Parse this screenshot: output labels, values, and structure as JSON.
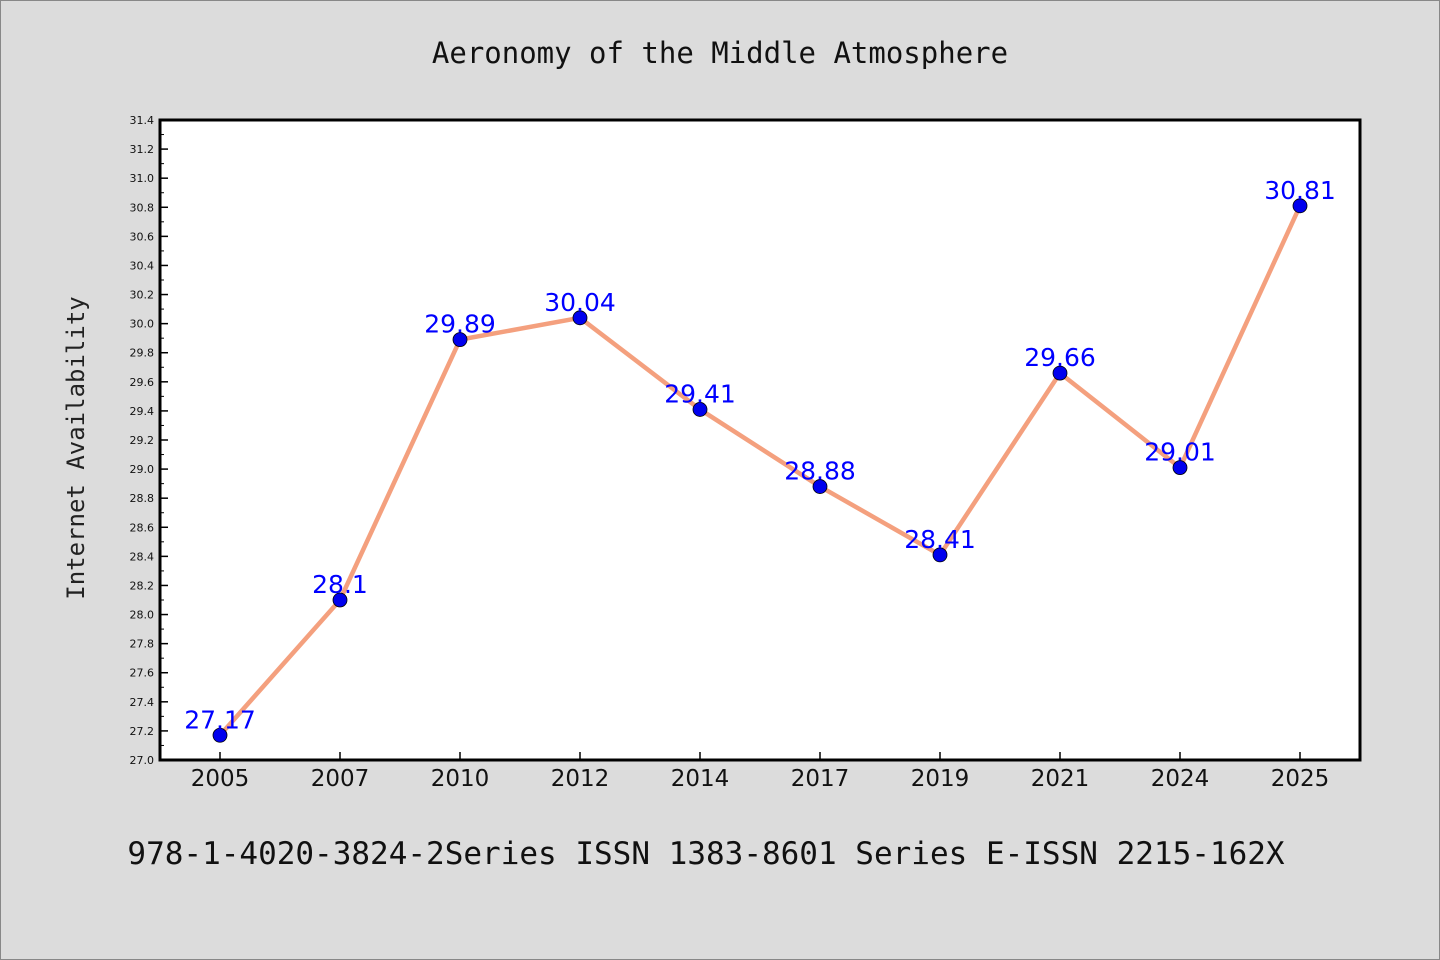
{
  "chart_data": {
    "type": "line",
    "title": "Aeronomy of the Middle Atmosphere",
    "xlabel": "",
    "ylabel": "Internet Availability",
    "categories": [
      "2005",
      "2007",
      "2010",
      "2012",
      "2014",
      "2017",
      "2019",
      "2021",
      "2024",
      "2025"
    ],
    "series": [
      {
        "values": [
          27.17,
          28.1,
          29.89,
          30.04,
          29.41,
          28.88,
          28.41,
          29.66,
          29.01,
          30.81
        ],
        "labels": [
          "27.17",
          "28.1",
          "29.89",
          "30.04",
          "29.41",
          "28.88",
          "28.41",
          "29.66",
          "29.01",
          "30.81"
        ]
      }
    ],
    "ylim": [
      27.0,
      31.4
    ],
    "yticks": [
      "27.0",
      "27.2",
      "27.4",
      "27.6",
      "27.8",
      "28.0",
      "28.2",
      "28.4",
      "28.6",
      "28.8",
      "29.0",
      "29.2",
      "29.4",
      "29.6",
      "29.8",
      "30.0",
      "30.2",
      "30.4",
      "30.6",
      "30.8",
      "31.0",
      "31.2",
      "31.4"
    ],
    "grid": false,
    "legend": "none",
    "colors": {
      "line": "#f4a07e",
      "marker": "#0000ee",
      "label": "#0000ff",
      "background": "#dcdcdc",
      "plot_background": "#ffffff"
    }
  },
  "footer": {
    "text": "978-1-4020-3824-2Series ISSN 1383-8601 Series E-ISSN 2215-162X"
  }
}
